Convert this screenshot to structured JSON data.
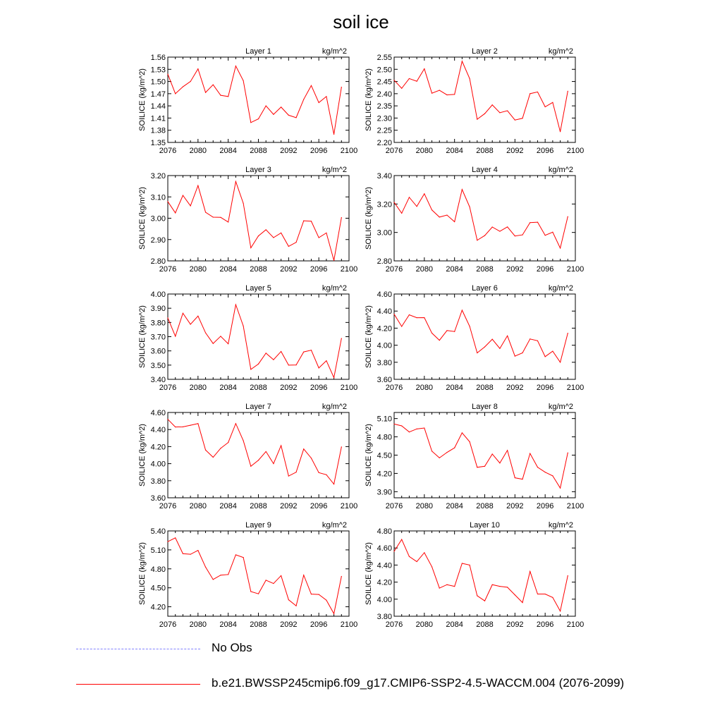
{
  "title": "soil ice",
  "legend": {
    "obs": {
      "label": "No Obs",
      "color": "#8080ff"
    },
    "model": {
      "label": "b.e21.BWSSP245cmip6.f09_g17.CMIP6-SSP2-4.5-WACCM.004 (2076-2099)",
      "color": "#ff0000"
    }
  },
  "chart_data": [
    {
      "type": "line",
      "title": "Layer 1",
      "units": "kg/m^2",
      "ylabel": "SOILICE  (kg/m^2)",
      "x": [
        2076,
        2077,
        2078,
        2079,
        2080,
        2081,
        2082,
        2083,
        2084,
        2085,
        2086,
        2087,
        2088,
        2089,
        2090,
        2091,
        2092,
        2093,
        2094,
        2095,
        2096,
        2097,
        2098,
        2099
      ],
      "xlim": [
        2076,
        2100
      ],
      "xticks": [
        "2076",
        "2080",
        "2084",
        "2088",
        "2092",
        "2096",
        "2100"
      ],
      "ylim": [
        1.35,
        1.56
      ],
      "yticks": [
        "1.35",
        "1.38",
        "1.41",
        "1.44",
        "1.47",
        "1.50",
        "1.53",
        "1.56"
      ],
      "series": [
        {
          "values": [
            1.518,
            1.47,
            1.487,
            1.5,
            1.531,
            1.473,
            1.492,
            1.466,
            1.463,
            1.538,
            1.502,
            1.399,
            1.408,
            1.44,
            1.419,
            1.437,
            1.417,
            1.411,
            1.456,
            1.49,
            1.448,
            1.463,
            1.37,
            1.486
          ]
        }
      ]
    },
    {
      "type": "line",
      "title": "Layer 2",
      "units": "kg/m^2",
      "ylabel": "SOILICE  (kg/m^2)",
      "x": [
        2076,
        2077,
        2078,
        2079,
        2080,
        2081,
        2082,
        2083,
        2084,
        2085,
        2086,
        2087,
        2088,
        2089,
        2090,
        2091,
        2092,
        2093,
        2094,
        2095,
        2096,
        2097,
        2098,
        2099
      ],
      "xlim": [
        2076,
        2100
      ],
      "xticks": [
        "2076",
        "2080",
        "2084",
        "2088",
        "2092",
        "2096",
        "2100"
      ],
      "ylim": [
        2.2,
        2.55
      ],
      "yticks": [
        "2.20",
        "2.25",
        "2.30",
        "2.35",
        "2.40",
        "2.45",
        "2.50",
        "2.55"
      ],
      "series": [
        {
          "values": [
            2.455,
            2.422,
            2.462,
            2.451,
            2.502,
            2.402,
            2.414,
            2.395,
            2.397,
            2.533,
            2.462,
            2.295,
            2.318,
            2.354,
            2.322,
            2.33,
            2.292,
            2.299,
            2.4,
            2.407,
            2.346,
            2.364,
            2.244,
            2.41
          ]
        }
      ]
    },
    {
      "type": "line",
      "title": "Layer 3",
      "units": "kg/m^2",
      "ylabel": "SOILICE  (kg/m^2)",
      "x": [
        2076,
        2077,
        2078,
        2079,
        2080,
        2081,
        2082,
        2083,
        2084,
        2085,
        2086,
        2087,
        2088,
        2089,
        2090,
        2091,
        2092,
        2093,
        2094,
        2095,
        2096,
        2097,
        2098,
        2099
      ],
      "xlim": [
        2076,
        2100
      ],
      "xticks": [
        "2076",
        "2080",
        "2084",
        "2088",
        "2092",
        "2096",
        "2100"
      ],
      "ylim": [
        2.8,
        3.2
      ],
      "yticks": [
        "2.80",
        "2.90",
        "3.00",
        "3.10",
        "3.20"
      ],
      "series": [
        {
          "values": [
            3.078,
            3.025,
            3.107,
            3.058,
            3.153,
            3.028,
            3.005,
            3.004,
            2.982,
            3.172,
            3.07,
            2.861,
            2.917,
            2.946,
            2.909,
            2.931,
            2.868,
            2.887,
            2.988,
            2.986,
            2.909,
            2.931,
            2.802,
            3.003
          ]
        }
      ]
    },
    {
      "type": "line",
      "title": "Layer 4",
      "units": "kg/m^2",
      "ylabel": "SOILICE  (kg/m^2)",
      "x": [
        2076,
        2077,
        2078,
        2079,
        2080,
        2081,
        2082,
        2083,
        2084,
        2085,
        2086,
        2087,
        2088,
        2089,
        2090,
        2091,
        2092,
        2093,
        2094,
        2095,
        2096,
        2097,
        2098,
        2099
      ],
      "xlim": [
        2076,
        2100
      ],
      "xticks": [
        "2076",
        "2080",
        "2084",
        "2088",
        "2092",
        "2096",
        "2100"
      ],
      "ylim": [
        2.8,
        3.4
      ],
      "yticks": [
        "2.80",
        "3.00",
        "3.20",
        "3.40"
      ],
      "series": [
        {
          "values": [
            3.212,
            3.135,
            3.247,
            3.183,
            3.272,
            3.158,
            3.108,
            3.122,
            3.075,
            3.302,
            3.18,
            2.945,
            2.978,
            3.038,
            3.008,
            3.039,
            2.975,
            2.983,
            3.069,
            3.072,
            2.98,
            3.002,
            2.89,
            3.111
          ]
        }
      ]
    },
    {
      "type": "line",
      "title": "Layer 5",
      "units": "kg/m^2",
      "ylabel": "SOILICE  (kg/m^2)",
      "x": [
        2076,
        2077,
        2078,
        2079,
        2080,
        2081,
        2082,
        2083,
        2084,
        2085,
        2086,
        2087,
        2088,
        2089,
        2090,
        2091,
        2092,
        2093,
        2094,
        2095,
        2096,
        2097,
        2098,
        2099
      ],
      "xlim": [
        2076,
        2100
      ],
      "xticks": [
        "2076",
        "2080",
        "2084",
        "2088",
        "2092",
        "2096",
        "2100"
      ],
      "ylim": [
        3.4,
        4.0
      ],
      "yticks": [
        "3.40",
        "3.50",
        "3.60",
        "3.70",
        "3.80",
        "3.90",
        "4.00"
      ],
      "series": [
        {
          "values": [
            3.832,
            3.703,
            3.865,
            3.787,
            3.845,
            3.727,
            3.652,
            3.703,
            3.65,
            3.925,
            3.775,
            3.47,
            3.508,
            3.584,
            3.538,
            3.596,
            3.5,
            3.501,
            3.593,
            3.605,
            3.48,
            3.531,
            3.412,
            3.688
          ]
        }
      ]
    },
    {
      "type": "line",
      "title": "Layer 6",
      "units": "kg/m^2",
      "ylabel": "SOILICE  (kg/m^2)",
      "x": [
        2076,
        2077,
        2078,
        2079,
        2080,
        2081,
        2082,
        2083,
        2084,
        2085,
        2086,
        2087,
        2088,
        2089,
        2090,
        2091,
        2092,
        2093,
        2094,
        2095,
        2096,
        2097,
        2098,
        2099
      ],
      "xlim": [
        2076,
        2100
      ],
      "xticks": [
        "2076",
        "2080",
        "2084",
        "2088",
        "2092",
        "2096",
        "2100"
      ],
      "ylim": [
        3.6,
        4.6
      ],
      "yticks": [
        "3.60",
        "3.80",
        "4.00",
        "4.20",
        "4.40",
        "4.60"
      ],
      "series": [
        {
          "values": [
            4.364,
            4.22,
            4.356,
            4.322,
            4.323,
            4.142,
            4.058,
            4.172,
            4.16,
            4.41,
            4.222,
            3.91,
            3.98,
            4.07,
            3.962,
            4.11,
            3.872,
            3.91,
            4.073,
            4.052,
            3.866,
            3.93,
            3.8,
            4.14
          ]
        }
      ]
    },
    {
      "type": "line",
      "title": "Layer 7",
      "units": "kg/m^2",
      "ylabel": "SOILICE  (kg/m^2)",
      "x": [
        2076,
        2077,
        2078,
        2079,
        2080,
        2081,
        2082,
        2083,
        2084,
        2085,
        2086,
        2087,
        2088,
        2089,
        2090,
        2091,
        2092,
        2093,
        2094,
        2095,
        2096,
        2097,
        2098,
        2099
      ],
      "xlim": [
        2076,
        2100
      ],
      "xticks": [
        "2076",
        "2080",
        "2084",
        "2088",
        "2092",
        "2096",
        "2100"
      ],
      "ylim": [
        3.6,
        4.6
      ],
      "yticks": [
        "3.60",
        "3.80",
        "4.00",
        "4.20",
        "4.40",
        "4.60"
      ],
      "series": [
        {
          "values": [
            4.52,
            4.43,
            4.432,
            4.45,
            4.47,
            4.16,
            4.075,
            4.18,
            4.248,
            4.47,
            4.27,
            3.97,
            4.04,
            4.142,
            4.0,
            4.212,
            3.855,
            3.9,
            4.172,
            4.065,
            3.895,
            3.87,
            3.76,
            4.196
          ]
        }
      ]
    },
    {
      "type": "line",
      "title": "Layer 8",
      "units": "kg/m^2",
      "ylabel": "SOILICE  (kg/m^2)",
      "x": [
        2076,
        2077,
        2078,
        2079,
        2080,
        2081,
        2082,
        2083,
        2084,
        2085,
        2086,
        2087,
        2088,
        2089,
        2090,
        2091,
        2092,
        2093,
        2094,
        2095,
        2096,
        2097,
        2098,
        2099
      ],
      "xlim": [
        2076,
        2100
      ],
      "xticks": [
        "2076",
        "2080",
        "2084",
        "2088",
        "2092",
        "2096",
        "2100"
      ],
      "ylim": [
        3.8,
        5.2
      ],
      "yticks": [
        "3.90",
        "4.20",
        "4.50",
        "4.80",
        "5.10"
      ],
      "series": [
        {
          "values": [
            5.01,
            4.98,
            4.88,
            4.93,
            4.945,
            4.565,
            4.455,
            4.545,
            4.62,
            4.866,
            4.72,
            4.3,
            4.318,
            4.518,
            4.37,
            4.578,
            4.128,
            4.105,
            4.527,
            4.302,
            4.22,
            4.16,
            3.96,
            4.538
          ]
        }
      ]
    },
    {
      "type": "line",
      "title": "Layer 9",
      "units": "kg/m^2",
      "ylabel": "SOILICE  (kg/m^2)",
      "x": [
        2076,
        2077,
        2078,
        2079,
        2080,
        2081,
        2082,
        2083,
        2084,
        2085,
        2086,
        2087,
        2088,
        2089,
        2090,
        2091,
        2092,
        2093,
        2094,
        2095,
        2096,
        2097,
        2098,
        2099
      ],
      "xlim": [
        2076,
        2100
      ],
      "xticks": [
        "2076",
        "2080",
        "2084",
        "2088",
        "2092",
        "2096",
        "2100"
      ],
      "ylim": [
        4.05,
        5.4
      ],
      "yticks": [
        "4.20",
        "4.50",
        "4.80",
        "5.10",
        "5.40"
      ],
      "series": [
        {
          "values": [
            5.23,
            5.29,
            5.04,
            5.03,
            5.092,
            4.828,
            4.632,
            4.7,
            4.71,
            5.022,
            4.98,
            4.44,
            4.405,
            4.62,
            4.568,
            4.692,
            4.31,
            4.214,
            4.7,
            4.4,
            4.395,
            4.304,
            4.09,
            4.68
          ]
        }
      ]
    },
    {
      "type": "line",
      "title": "Layer 10",
      "units": "kg/m^2",
      "ylabel": "SOILICE  (kg/m^2)",
      "x": [
        2076,
        2077,
        2078,
        2079,
        2080,
        2081,
        2082,
        2083,
        2084,
        2085,
        2086,
        2087,
        2088,
        2089,
        2090,
        2091,
        2092,
        2093,
        2094,
        2095,
        2096,
        2097,
        2098,
        2099
      ],
      "xlim": [
        2076,
        2100
      ],
      "xticks": [
        "2076",
        "2080",
        "2084",
        "2088",
        "2092",
        "2096",
        "2100"
      ],
      "ylim": [
        3.8,
        4.8
      ],
      "yticks": [
        "3.80",
        "4.00",
        "4.20",
        "4.40",
        "4.60",
        "4.80"
      ],
      "series": [
        {
          "values": [
            4.56,
            4.7,
            4.5,
            4.44,
            4.545,
            4.38,
            4.13,
            4.17,
            4.15,
            4.42,
            4.4,
            4.04,
            3.98,
            4.17,
            4.15,
            4.14,
            4.05,
            3.96,
            4.325,
            4.06,
            4.06,
            4.02,
            3.86,
            4.275
          ]
        }
      ]
    }
  ]
}
